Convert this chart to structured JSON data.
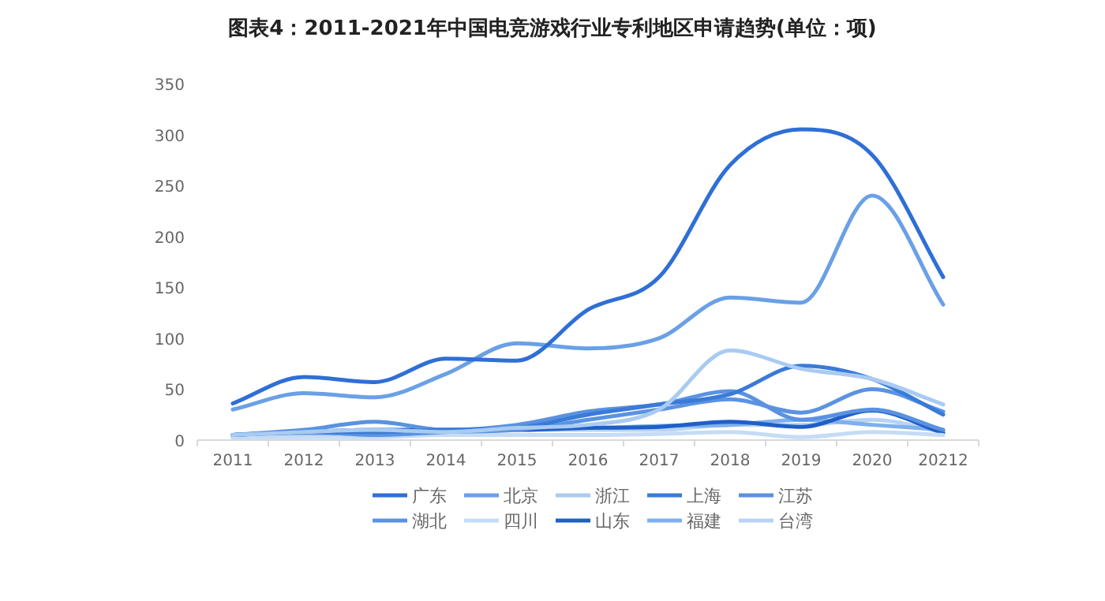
{
  "chart_data": {
    "type": "line",
    "title": "图表4：2011-2021年中国电竞游戏行业专利地区申请趋势(单位：项)",
    "categories": [
      "2011",
      "2012",
      "2013",
      "2014",
      "2015",
      "2016",
      "2017",
      "2018",
      "2019",
      "2020",
      "20212"
    ],
    "ylim": [
      0,
      350
    ],
    "yticks": [
      0,
      50,
      100,
      150,
      200,
      250,
      300,
      350
    ],
    "grid": false,
    "legend": "bottom",
    "marker": "none",
    "line_style": "solid",
    "series": [
      {
        "name": "广东",
        "color": "#2f6fd6",
        "values": [
          36,
          62,
          57,
          80,
          78,
          128,
          160,
          270,
          305,
          280,
          160
        ]
      },
      {
        "name": "北京",
        "color": "#6aa0e6",
        "values": [
          30,
          46,
          42,
          65,
          95,
          90,
          100,
          140,
          135,
          240,
          133
        ]
      },
      {
        "name": "浙江",
        "color": "#a9cbf2",
        "values": [
          5,
          8,
          10,
          8,
          12,
          15,
          30,
          88,
          70,
          60,
          35
        ]
      },
      {
        "name": "上海",
        "color": "#3a7ad8",
        "values": [
          5,
          8,
          8,
          10,
          12,
          25,
          35,
          45,
          73,
          60,
          25
        ]
      },
      {
        "name": "江苏",
        "color": "#5a92e0",
        "values": [
          5,
          10,
          18,
          10,
          15,
          28,
          35,
          48,
          20,
          30,
          10
        ]
      },
      {
        "name": "湖北",
        "color": "#5b93e2",
        "values": [
          5,
          8,
          5,
          8,
          10,
          20,
          30,
          40,
          27,
          50,
          28
        ]
      },
      {
        "name": "四川",
        "color": "#c5dcf6",
        "values": [
          2,
          3,
          3,
          5,
          5,
          5,
          6,
          8,
          3,
          8,
          5
        ]
      },
      {
        "name": "山东",
        "color": "#1f5fc8",
        "values": [
          5,
          8,
          10,
          10,
          10,
          12,
          13,
          18,
          13,
          29,
          7
        ]
      },
      {
        "name": "福建",
        "color": "#7fb0ec",
        "values": [
          3,
          5,
          8,
          8,
          12,
          12,
          14,
          15,
          20,
          15,
          10
        ]
      },
      {
        "name": "台湾",
        "color": "#b8d3f4",
        "values": [
          2,
          5,
          4,
          6,
          10,
          10,
          10,
          15,
          15,
          20,
          8
        ]
      }
    ]
  }
}
